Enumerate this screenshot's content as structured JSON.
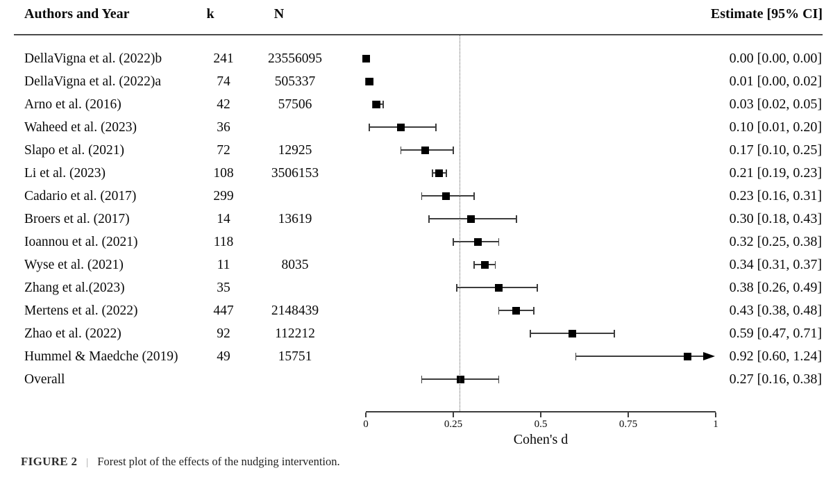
{
  "header": {
    "authors": "Authors and Year",
    "k": "k",
    "n": "N",
    "estimate": "Estimate [95% CI]"
  },
  "chart_data": {
    "type": "forest",
    "xlabel": "Cohen's d",
    "xlim": [
      0,
      1
    ],
    "x_ticks": [
      0,
      0.25,
      0.5,
      0.75,
      1
    ],
    "x_tick_labels": [
      "0",
      "0.25",
      "0.5",
      "0.75",
      "1"
    ],
    "dashed_line_at": 0.27,
    "grid": false,
    "rows": [
      {
        "author": "DellaVigna et al. (2022)b",
        "k": "241",
        "n": "23556095",
        "estimate": 0.0,
        "ci_low": 0.0,
        "ci_high": 0.0,
        "label": "0.00 [0.00, 0.00]"
      },
      {
        "author": "DellaVigna et al. (2022)a",
        "k": "74",
        "n": "505337",
        "estimate": 0.01,
        "ci_low": 0.0,
        "ci_high": 0.02,
        "label": "0.01 [0.00, 0.02]"
      },
      {
        "author": "Arno et al. (2016)",
        "k": "42",
        "n": "57506",
        "estimate": 0.03,
        "ci_low": 0.02,
        "ci_high": 0.05,
        "label": "0.03 [0.02, 0.05]"
      },
      {
        "author": "Waheed et al. (2023)",
        "k": "36",
        "n": "",
        "estimate": 0.1,
        "ci_low": 0.01,
        "ci_high": 0.2,
        "label": "0.10 [0.01, 0.20]"
      },
      {
        "author": "Slapo et al. (2021)",
        "k": "72",
        "n": "12925",
        "estimate": 0.17,
        "ci_low": 0.1,
        "ci_high": 0.25,
        "label": "0.17 [0.10, 0.25]"
      },
      {
        "author": "Li et al. (2023)",
        "k": "108",
        "n": "3506153",
        "estimate": 0.21,
        "ci_low": 0.19,
        "ci_high": 0.23,
        "label": "0.21 [0.19, 0.23]"
      },
      {
        "author": "Cadario et al. (2017)",
        "k": "299",
        "n": "",
        "estimate": 0.23,
        "ci_low": 0.16,
        "ci_high": 0.31,
        "label": "0.23 [0.16, 0.31]"
      },
      {
        "author": "Broers et al. (2017)",
        "k": "14",
        "n": "13619",
        "estimate": 0.3,
        "ci_low": 0.18,
        "ci_high": 0.43,
        "label": "0.30 [0.18, 0.43]"
      },
      {
        "author": "Ioannou et al. (2021)",
        "k": "118",
        "n": "",
        "estimate": 0.32,
        "ci_low": 0.25,
        "ci_high": 0.38,
        "label": "0.32 [0.25, 0.38]"
      },
      {
        "author": "Wyse et al. (2021)",
        "k": "11",
        "n": "8035",
        "estimate": 0.34,
        "ci_low": 0.31,
        "ci_high": 0.37,
        "label": "0.34 [0.31, 0.37]"
      },
      {
        "author": "Zhang et al.(2023)",
        "k": "35",
        "n": "",
        "estimate": 0.38,
        "ci_low": 0.26,
        "ci_high": 0.49,
        "label": "0.38 [0.26, 0.49]"
      },
      {
        "author": "Mertens et al. (2022)",
        "k": "447",
        "n": "2148439",
        "estimate": 0.43,
        "ci_low": 0.38,
        "ci_high": 0.48,
        "label": "0.43 [0.38, 0.48]"
      },
      {
        "author": "Zhao et al. (2022)",
        "k": "92",
        "n": "112212",
        "estimate": 0.59,
        "ci_low": 0.47,
        "ci_high": 0.71,
        "label": "0.59 [0.47, 0.71]"
      },
      {
        "author": "Hummel & Maedche (2019)",
        "k": "49",
        "n": "15751",
        "estimate": 0.92,
        "ci_low": 0.6,
        "ci_high": 1.24,
        "label": "0.92 [0.60, 1.24]",
        "clipped": true
      },
      {
        "author": "Overall",
        "k": "",
        "n": "",
        "estimate": 0.27,
        "ci_low": 0.16,
        "ci_high": 0.38,
        "label": "0.27 [0.16, 0.38]"
      }
    ]
  },
  "caption": {
    "label": "FIGURE 2",
    "separator": "|",
    "text": "Forest plot of the effects of the nudging intervention."
  },
  "colors": {
    "marker": "#000000",
    "line": "#3c3c3c",
    "dashed": "#595959",
    "text": "#0a0a0a"
  }
}
